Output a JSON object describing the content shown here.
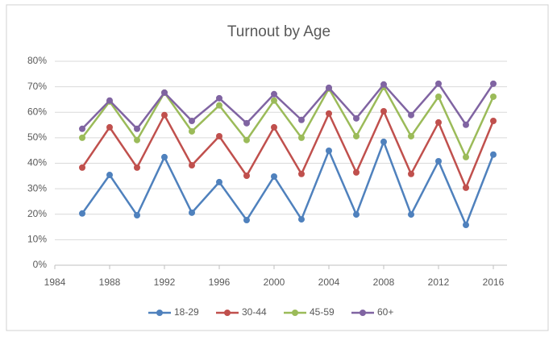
{
  "chart_data": {
    "type": "line",
    "title": "Turnout by Age",
    "x": [
      1986,
      1988,
      1990,
      1992,
      1994,
      1996,
      1998,
      2000,
      2002,
      2004,
      2006,
      2008,
      2010,
      2012,
      2014,
      2016
    ],
    "series": [
      {
        "name": "18-29",
        "color": "#4f81bd",
        "values": [
          20.3,
          35.4,
          19.6,
          42.4,
          20.6,
          32.6,
          17.7,
          34.8,
          18.0,
          44.9,
          19.9,
          48.4,
          19.9,
          40.8,
          15.8,
          43.4
        ]
      },
      {
        "name": "30-44",
        "color": "#c0504d",
        "values": [
          38.3,
          54.1,
          38.3,
          58.9,
          39.2,
          50.6,
          35.1,
          54.1,
          35.8,
          59.5,
          36.4,
          60.4,
          35.8,
          56.0,
          30.4,
          56.6
        ]
      },
      {
        "name": "45-59",
        "color": "#9bbb59",
        "values": [
          50.0,
          64.2,
          49.1,
          67.7,
          52.5,
          62.7,
          49.1,
          64.6,
          50.0,
          69.3,
          50.6,
          69.9,
          50.6,
          66.1,
          42.4,
          66.1
        ]
      },
      {
        "name": "60+",
        "color": "#8064a2",
        "values": [
          53.5,
          64.6,
          53.5,
          67.7,
          56.6,
          65.5,
          55.7,
          67.1,
          57.0,
          69.6,
          57.6,
          70.9,
          58.9,
          71.2,
          55.1,
          71.2
        ]
      }
    ],
    "xlim": [
      1984,
      2017
    ],
    "xticks": [
      1984,
      1988,
      1992,
      1996,
      2000,
      2004,
      2008,
      2012,
      2016
    ],
    "ylim": [
      0,
      80
    ],
    "yticks": [
      {
        "value": 0,
        "label": "0%"
      },
      {
        "value": 10,
        "label": "10%"
      },
      {
        "value": 20,
        "label": "20%"
      },
      {
        "value": 30,
        "label": "30%"
      },
      {
        "value": 40,
        "label": "40%"
      },
      {
        "value": 50,
        "label": "50%"
      },
      {
        "value": 60,
        "label": "60%"
      },
      {
        "value": 70,
        "label": "70%"
      },
      {
        "value": 80,
        "label": "80%"
      }
    ],
    "grid": true,
    "legend": "bottom"
  }
}
